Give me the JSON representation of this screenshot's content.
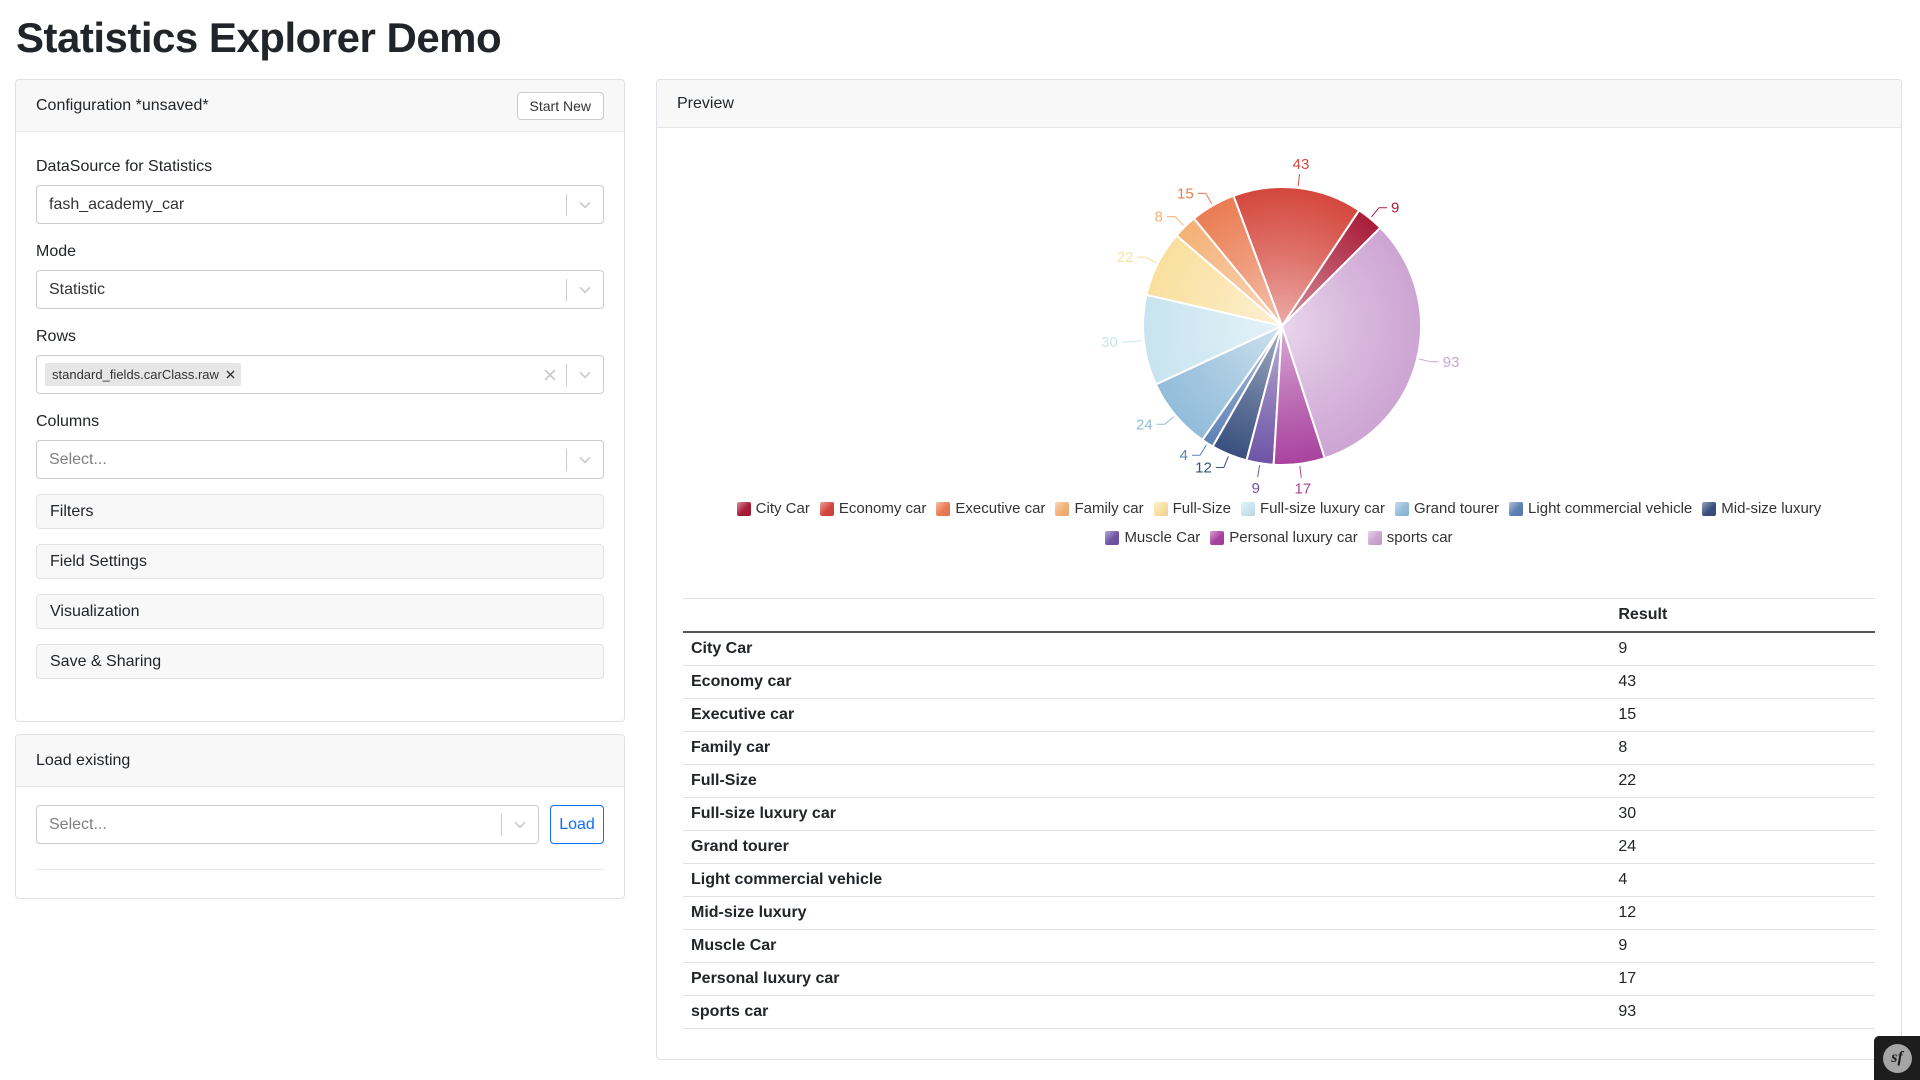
{
  "page": {
    "title": "Statistics Explorer Demo"
  },
  "config_panel": {
    "title": "Configuration *unsaved*",
    "start_new_label": "Start New",
    "fields": {
      "datasource": {
        "label": "DataSource for Statistics",
        "value": "fash_academy_car"
      },
      "mode": {
        "label": "Mode",
        "value": "Statistic"
      },
      "rows": {
        "label": "Rows",
        "tag": "standard_fields.carClass.raw"
      },
      "columns": {
        "label": "Columns",
        "placeholder": "Select..."
      }
    },
    "sections": [
      {
        "label": "Filters"
      },
      {
        "label": "Field Settings"
      },
      {
        "label": "Visualization"
      },
      {
        "label": "Save & Sharing"
      }
    ]
  },
  "load_panel": {
    "title": "Load existing",
    "placeholder": "Select...",
    "load_label": "Load"
  },
  "preview_panel": {
    "title": "Preview",
    "table": {
      "result_header": "Result",
      "rows": [
        {
          "label": "City Car",
          "value": 9
        },
        {
          "label": "Economy car",
          "value": 43
        },
        {
          "label": "Executive car",
          "value": 15
        },
        {
          "label": "Family car",
          "value": 8
        },
        {
          "label": "Full-Size",
          "value": 22
        },
        {
          "label": "Full-size luxury car",
          "value": 30
        },
        {
          "label": "Grand tourer",
          "value": 24
        },
        {
          "label": "Light commercial vehicle",
          "value": 4
        },
        {
          "label": "Mid-size luxury",
          "value": 12
        },
        {
          "label": "Muscle Car",
          "value": 9
        },
        {
          "label": "Personal luxury car",
          "value": 17
        },
        {
          "label": "sports car",
          "value": 93
        }
      ]
    }
  },
  "chart_data": {
    "type": "pie",
    "title": "",
    "show_value_labels": true,
    "legend_position": "bottom",
    "series": [
      {
        "name": "City Car",
        "value": 9,
        "color": "#a91c38"
      },
      {
        "name": "Economy car",
        "value": 43,
        "color": "#d4473d"
      },
      {
        "name": "Executive car",
        "value": 15,
        "color": "#ea7c52"
      },
      {
        "name": "Family car",
        "value": 8,
        "color": "#f4b076"
      },
      {
        "name": "Full-Size",
        "value": 22,
        "color": "#fadf9e"
      },
      {
        "name": "Full-size luxury car",
        "value": 30,
        "color": "#c8e4f0"
      },
      {
        "name": "Grand tourer",
        "value": 24,
        "color": "#92bcda"
      },
      {
        "name": "Light commercial vehicle",
        "value": 4,
        "color": "#5e81b5"
      },
      {
        "name": "Mid-size luxury",
        "value": 12,
        "color": "#394f7e"
      },
      {
        "name": "Muscle Car",
        "value": 9,
        "color": "#6e54a6"
      },
      {
        "name": "Personal luxury car",
        "value": 17,
        "color": "#a9429f"
      },
      {
        "name": "sports car",
        "value": 93,
        "color": "#cda4d3"
      }
    ],
    "layout": {
      "start_angle_deg": 45,
      "direction": "counterclockwise"
    }
  },
  "profiler": {
    "logo_text": "sf"
  }
}
